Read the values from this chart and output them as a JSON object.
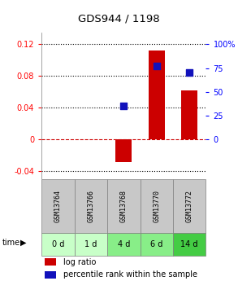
{
  "title": "GDS944 / 1198",
  "samples": [
    "GSM13764",
    "GSM13766",
    "GSM13768",
    "GSM13770",
    "GSM13772"
  ],
  "time_labels": [
    "0 d",
    "1 d",
    "4 d",
    "6 d",
    "14 d"
  ],
  "log_ratio": [
    0.0,
    0.0,
    -0.028,
    0.112,
    0.062
  ],
  "percentile_rank_pct": [
    null,
    null,
    35,
    77,
    70
  ],
  "ylim_left": [
    -0.05,
    0.135
  ],
  "ylim_right": [
    -41.67,
    112.5
  ],
  "yticks_left": [
    -0.04,
    0.0,
    0.04,
    0.08,
    0.12
  ],
  "yticks_right": [
    0,
    25,
    50,
    75,
    100
  ],
  "ytick_labels_left": [
    "-0.04",
    "0",
    "0.04",
    "0.08",
    "0.12"
  ],
  "ytick_labels_right": [
    "0",
    "25",
    "50",
    "75",
    "100%"
  ],
  "bar_color": "#cc0000",
  "dot_color": "#1111bb",
  "bar_width": 0.5,
  "dot_size": 30,
  "gsm_bg_color": "#c8c8c8",
  "time_bg_colors": [
    "#c8ffc8",
    "#c8ffc8",
    "#88ee88",
    "#88ee88",
    "#44cc44"
  ],
  "legend_log_ratio": "log ratio",
  "legend_percentile": "percentile rank within the sample",
  "time_arrow_label": "time"
}
